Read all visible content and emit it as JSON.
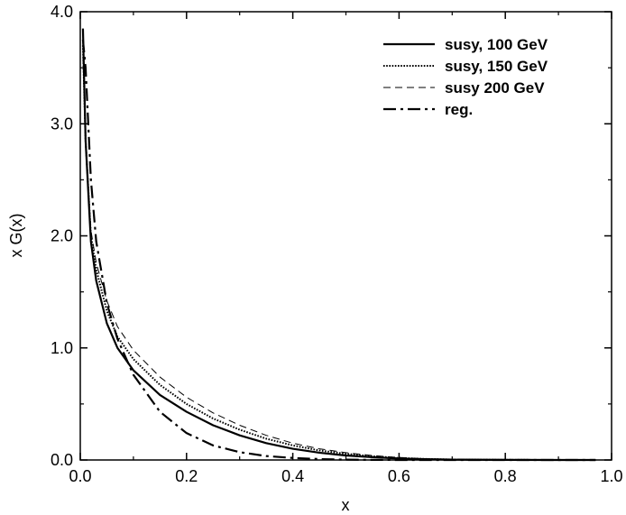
{
  "chart_data": {
    "type": "line",
    "title": "",
    "xlabel": "x",
    "ylabel": "x G(x)",
    "xlim": [
      0.0,
      1.0
    ],
    "ylim": [
      0.0,
      4.0
    ],
    "grid": false,
    "legend_position": "top-right",
    "x_ticks": [
      "0.0",
      "0.2",
      "0.4",
      "0.6",
      "0.8",
      "1.0"
    ],
    "y_ticks": [
      "0.0",
      "1.0",
      "2.0",
      "3.0",
      "4.0"
    ],
    "x": [
      0.005,
      0.01,
      0.02,
      0.03,
      0.05,
      0.07,
      0.1,
      0.15,
      0.2,
      0.25,
      0.3,
      0.35,
      0.4,
      0.45,
      0.5,
      0.55,
      0.6,
      0.65,
      0.7,
      0.8,
      0.9,
      0.97
    ],
    "series": [
      {
        "name": "susy, 100 GeV",
        "style": "solid",
        "color": "#000000",
        "values": [
          3.85,
          2.85,
          1.95,
          1.6,
          1.22,
          1.0,
          0.8,
          0.58,
          0.43,
          0.31,
          0.22,
          0.15,
          0.1,
          0.065,
          0.04,
          0.025,
          0.013,
          0.007,
          0.003,
          0.001,
          0.0,
          0.0
        ]
      },
      {
        "name": "susy, 150 GeV",
        "style": "dotted",
        "color": "#000000",
        "values": [
          3.7,
          2.85,
          2.0,
          1.7,
          1.33,
          1.1,
          0.9,
          0.67,
          0.5,
          0.37,
          0.27,
          0.19,
          0.13,
          0.085,
          0.055,
          0.033,
          0.018,
          0.009,
          0.004,
          0.001,
          0.0,
          0.0
        ]
      },
      {
        "name": "susy 200 GeV",
        "style": "dashed",
        "color": "#000000",
        "values": [
          3.6,
          2.85,
          2.05,
          1.76,
          1.42,
          1.19,
          0.98,
          0.74,
          0.56,
          0.42,
          0.31,
          0.22,
          0.15,
          0.1,
          0.065,
          0.04,
          0.022,
          0.011,
          0.005,
          0.001,
          0.0,
          0.0
        ]
      },
      {
        "name": "reg.",
        "style": "dash-dot",
        "color": "#000000",
        "values": [
          3.75,
          3.5,
          2.5,
          1.95,
          1.4,
          1.08,
          0.76,
          0.43,
          0.24,
          0.13,
          0.07,
          0.035,
          0.018,
          0.008,
          0.003,
          0.001,
          0.0,
          0.0,
          0.0,
          0.0,
          0.0,
          0.0
        ]
      }
    ]
  }
}
